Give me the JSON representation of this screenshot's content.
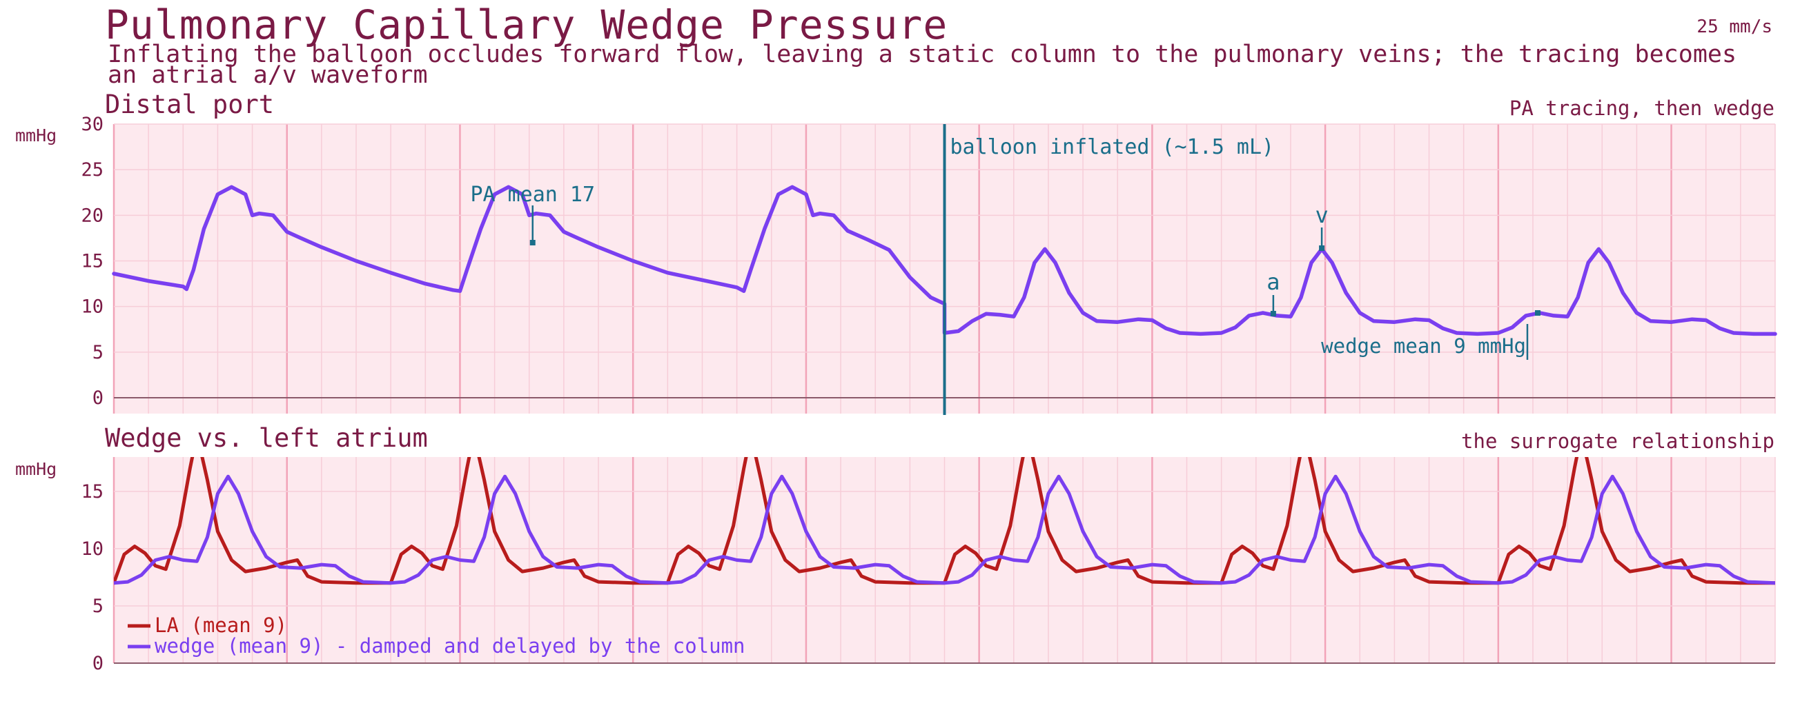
{
  "header": {
    "title": "Pulmonary Capillary Wedge Pressure",
    "speed": "25 mm/s",
    "subtitle": "Inflating the balloon occludes forward flow, leaving a static column to the pulmonary veins; the tracing becomes an atrial a/v waveform"
  },
  "colors": {
    "trace": "#7a3ff0",
    "la": "#b81c1c",
    "annot": "#1a6e8a",
    "grid_bg": "#fde9ee",
    "text": "#7a1a45"
  },
  "chart_data": [
    {
      "type": "line",
      "title": "Distal port",
      "note": "PA tracing, then wedge",
      "ylabel": "mmHg",
      "ylim": [
        0,
        30
      ],
      "yticks": [
        0,
        5,
        10,
        15,
        20,
        25,
        30
      ],
      "duration_s": 4.8,
      "series": [
        {
          "name": "",
          "points": [
            [
              0.0,
              13.6
            ],
            [
              0.1,
              12.8
            ],
            [
              0.2,
              12.2
            ],
            [
              0.21,
              11.9
            ],
            [
              0.23,
              14.0
            ],
            [
              0.26,
              18.5
            ],
            [
              0.3,
              22.3
            ],
            [
              0.34,
              23.1
            ],
            [
              0.38,
              22.3
            ],
            [
              0.4,
              20.0
            ],
            [
              0.42,
              20.2
            ],
            [
              0.46,
              20.0
            ],
            [
              0.5,
              18.2
            ],
            [
              0.54,
              17.5
            ],
            [
              0.6,
              16.5
            ],
            [
              0.7,
              15.0
            ],
            [
              0.8,
              13.7
            ],
            [
              0.9,
              12.5
            ],
            [
              0.98,
              11.8
            ],
            [
              1.0,
              11.7
            ],
            [
              1.0,
              11.7
            ],
            [
              1.02,
              14.0
            ],
            [
              1.06,
              18.5
            ],
            [
              1.1,
              22.3
            ],
            [
              1.14,
              23.1
            ],
            [
              1.18,
              22.3
            ],
            [
              1.2,
              20.0
            ],
            [
              1.22,
              20.2
            ],
            [
              1.26,
              20.0
            ],
            [
              1.3,
              18.2
            ],
            [
              1.34,
              17.5
            ],
            [
              1.4,
              16.5
            ],
            [
              1.5,
              15.0
            ],
            [
              1.6,
              13.7
            ],
            [
              1.7,
              12.9
            ],
            [
              1.8,
              12.1
            ],
            [
              1.82,
              11.7
            ],
            [
              1.84,
              14.0
            ],
            [
              1.88,
              18.5
            ],
            [
              1.92,
              22.3
            ],
            [
              1.96,
              23.1
            ],
            [
              2.0,
              22.3
            ],
            [
              2.02,
              20.0
            ],
            [
              2.04,
              20.2
            ],
            [
              2.08,
              20.0
            ],
            [
              2.12,
              18.3
            ],
            [
              2.18,
              17.3
            ],
            [
              2.24,
              16.2
            ],
            [
              2.3,
              13.2
            ],
            [
              2.36,
              11.0
            ],
            [
              2.4,
              10.3
            ],
            [
              2.4,
              7.1
            ],
            [
              2.44,
              7.3
            ],
            [
              2.48,
              8.4
            ],
            [
              2.52,
              9.2
            ],
            [
              2.56,
              9.1
            ],
            [
              2.6,
              8.9
            ],
            [
              2.63,
              11.0
            ],
            [
              2.66,
              14.8
            ],
            [
              2.69,
              16.3
            ],
            [
              2.72,
              14.8
            ],
            [
              2.76,
              11.5
            ],
            [
              2.8,
              9.3
            ],
            [
              2.84,
              8.4
            ],
            [
              2.9,
              8.3
            ],
            [
              2.96,
              8.6
            ],
            [
              3.0,
              8.5
            ],
            [
              3.04,
              7.6
            ],
            [
              3.08,
              7.1
            ],
            [
              3.14,
              7.0
            ],
            [
              3.2,
              7.1
            ],
            [
              3.24,
              7.7
            ],
            [
              3.28,
              9.0
            ],
            [
              3.32,
              9.3
            ],
            [
              3.36,
              9.0
            ],
            [
              3.4,
              8.9
            ],
            [
              3.43,
              11.0
            ],
            [
              3.46,
              14.8
            ],
            [
              3.49,
              16.3
            ],
            [
              3.52,
              14.8
            ],
            [
              3.56,
              11.5
            ],
            [
              3.6,
              9.3
            ],
            [
              3.64,
              8.4
            ],
            [
              3.7,
              8.3
            ],
            [
              3.76,
              8.6
            ],
            [
              3.8,
              8.5
            ],
            [
              3.84,
              7.6
            ],
            [
              3.88,
              7.1
            ],
            [
              3.94,
              7.0
            ],
            [
              4.0,
              7.1
            ],
            [
              4.04,
              7.7
            ],
            [
              4.08,
              9.0
            ],
            [
              4.12,
              9.3
            ],
            [
              4.16,
              9.0
            ],
            [
              4.2,
              8.9
            ],
            [
              4.23,
              11.0
            ],
            [
              4.26,
              14.8
            ],
            [
              4.29,
              16.3
            ],
            [
              4.32,
              14.8
            ],
            [
              4.36,
              11.5
            ],
            [
              4.4,
              9.3
            ],
            [
              4.44,
              8.4
            ],
            [
              4.5,
              8.3
            ],
            [
              4.56,
              8.6
            ],
            [
              4.6,
              8.5
            ],
            [
              4.64,
              7.6
            ],
            [
              4.68,
              7.1
            ],
            [
              4.74,
              7.0
            ],
            [
              4.8,
              7.0
            ]
          ]
        }
      ],
      "annotations": {
        "event_t": 2.4,
        "event_label": "balloon inflated (~1.5 mL)",
        "pa_mean_label": "PA mean 17",
        "pa_mean_t": 1.2,
        "a_label": "a",
        "a_t": 3.35,
        "v_label": "v",
        "v_t": 3.49,
        "wedge_mean_label": "wedge mean 9 mmHg",
        "wedge_mean_t": 4.1
      }
    },
    {
      "type": "line",
      "title": "Wedge vs. left atrium",
      "note": "the surrogate relationship",
      "ylabel": "mmHg",
      "ylim": [
        0,
        18
      ],
      "yticks": [
        0,
        5,
        10,
        15
      ],
      "duration_s": 4.8,
      "beat_period_s": 0.8,
      "series": [
        {
          "name": "LA (mean 9)",
          "color": "#b81c1c",
          "beat": [
            [
              0.0,
              7.0
            ],
            [
              0.03,
              9.5
            ],
            [
              0.06,
              10.2
            ],
            [
              0.09,
              9.6
            ],
            [
              0.12,
              8.5
            ],
            [
              0.15,
              8.2
            ],
            [
              0.19,
              12.0
            ],
            [
              0.22,
              17.0
            ],
            [
              0.24,
              20.0
            ],
            [
              0.27,
              16.0
            ],
            [
              0.3,
              11.5
            ],
            [
              0.34,
              9.0
            ],
            [
              0.38,
              8.0
            ],
            [
              0.44,
              8.3
            ],
            [
              0.5,
              8.8
            ],
            [
              0.53,
              9.0
            ],
            [
              0.56,
              7.6
            ],
            [
              0.6,
              7.1
            ],
            [
              0.7,
              7.0
            ],
            [
              0.8,
              7.0
            ]
          ]
        },
        {
          "name": "wedge (mean 9) - damped and delayed by the column",
          "color": "#7a3ff0",
          "beat": [
            [
              0.0,
              7.0
            ],
            [
              0.04,
              7.1
            ],
            [
              0.08,
              7.7
            ],
            [
              0.12,
              9.0
            ],
            [
              0.16,
              9.3
            ],
            [
              0.2,
              9.0
            ],
            [
              0.24,
              8.9
            ],
            [
              0.27,
              11.0
            ],
            [
              0.3,
              14.8
            ],
            [
              0.33,
              16.3
            ],
            [
              0.36,
              14.8
            ],
            [
              0.4,
              11.5
            ],
            [
              0.44,
              9.3
            ],
            [
              0.48,
              8.4
            ],
            [
              0.54,
              8.3
            ],
            [
              0.6,
              8.6
            ],
            [
              0.64,
              8.5
            ],
            [
              0.68,
              7.6
            ],
            [
              0.72,
              7.1
            ],
            [
              0.8,
              7.0
            ]
          ]
        }
      ]
    }
  ]
}
